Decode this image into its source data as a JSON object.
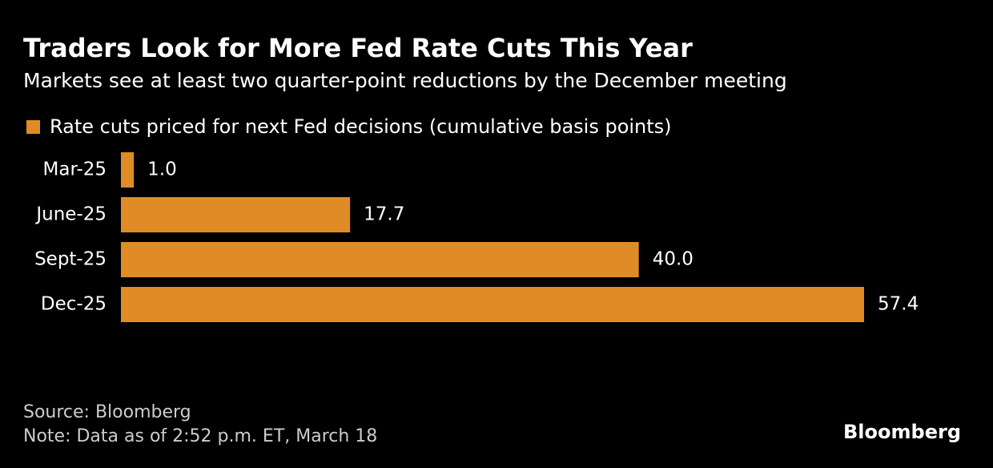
{
  "chart_data": {
    "type": "hbar",
    "title": "Traders Look for More Fed Rate Cuts This Year",
    "subtitle": "Markets see at least two quarter-point reductions by the December meeting",
    "categories": [
      "Mar-25",
      "June-25",
      "Sept-25",
      "Dec-25"
    ],
    "series": [
      {
        "name": "Rate cuts priced for next Fed decisions (cumulative basis points)",
        "color": "#df8c27",
        "values": [
          1.0,
          17.7,
          40.0,
          57.4
        ],
        "value_labels": [
          "1.0",
          "17.7",
          "40.0",
          "57.4"
        ]
      }
    ],
    "source": "Source: Bloomberg",
    "note": "Note: Data as of 2:52 p.m. ET, March 18",
    "logo": "Bloomberg"
  }
}
